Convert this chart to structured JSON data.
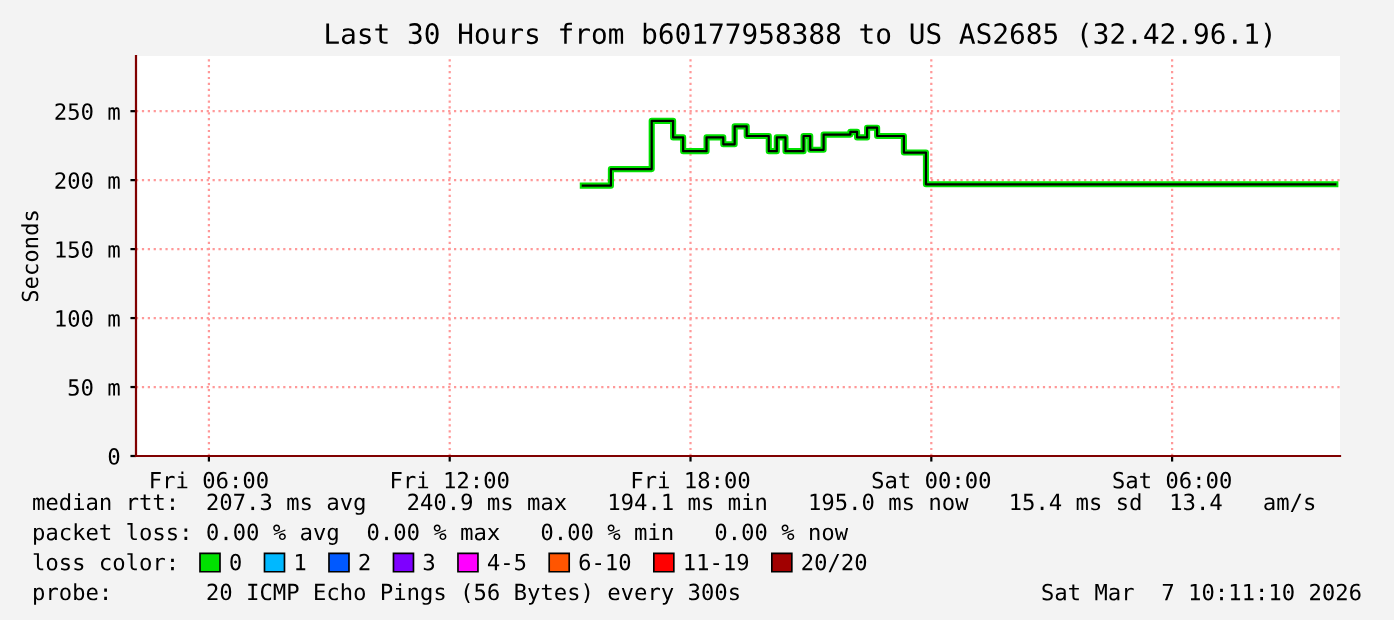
{
  "chart_data": {
    "type": "step",
    "title": "Last 30 Hours from b60177958388 to US AS2685 (32.42.96.1)",
    "ylabel": "Seconds",
    "series": [
      {
        "name": "0",
        "color": "#00e000",
        "x": [
          "2026-03-06T15:19",
          "2026-03-06T16:01",
          "2026-03-06T17:02",
          "2026-03-06T17:34",
          "2026-03-06T17:49",
          "2026-03-06T18:24",
          "2026-03-06T18:49",
          "2026-03-06T19:06",
          "2026-03-06T19:24",
          "2026-03-06T19:57",
          "2026-03-06T20:09",
          "2026-03-06T20:22",
          "2026-03-06T20:49",
          "2026-03-06T20:59",
          "2026-03-06T21:19",
          "2026-03-06T21:59",
          "2026-03-06T22:09",
          "2026-03-06T22:24",
          "2026-03-06T22:39",
          "2026-03-06T23:19",
          "2026-03-06T23:52",
          "2026-03-07T10:04"
        ],
        "values": [
          196,
          208,
          243,
          231,
          221,
          231,
          226,
          239,
          232,
          221,
          231,
          221,
          232,
          222,
          233,
          235,
          231,
          238,
          232,
          220,
          197,
          197
        ]
      },
      {
        "name": "1",
        "color": "#00b8ff"
      },
      {
        "name": "2",
        "color": "#0059ff"
      },
      {
        "name": "3",
        "color": "#7e00ff"
      },
      {
        "name": "4-5",
        "color": "#ff00ff"
      },
      {
        "name": "6-10",
        "color": "#ff5500"
      },
      {
        "name": "11-19",
        "color": "#ff0000"
      },
      {
        "name": "20/20",
        "color": "#a10000"
      }
    ],
    "xlim": [
      "2026-03-06T04:11",
      "2026-03-07T10:11"
    ],
    "xticks": [
      {
        "value": "2026-03-06T06:00",
        "label": "Fri 06:00"
      },
      {
        "value": "2026-03-06T12:00",
        "label": "Fri 12:00"
      },
      {
        "value": "2026-03-06T18:00",
        "label": "Fri 18:00"
      },
      {
        "value": "2026-03-07T00:00",
        "label": "Sat 00:00"
      },
      {
        "value": "2026-03-07T06:00",
        "label": "Sat 06:00"
      }
    ],
    "ylim": [
      0,
      290
    ],
    "yticks": [
      0,
      {
        "value": 50,
        "label": "50 m"
      },
      {
        "value": 100,
        "label": "100 m"
      },
      {
        "value": 150,
        "label": "150 m"
      },
      {
        "value": 200,
        "label": "200 m"
      },
      {
        "value": 250,
        "label": "250 m"
      }
    ],
    "grid": true,
    "legend": "bottom",
    "annotations": [
      "median rtt:  207.3 ms avg   240.9 ms max   194.1 ms min   195.0 ms now   15.4 ms sd  13.4   am/s",
      "packet loss: 0.00 % avg  0.00 % max   0.00 % min   0.00 % now",
      "loss color:",
      "probe:       20 ICMP Echo Pings (56 Bytes) every 300s",
      "Sat Mar  7 10:11:10 2026"
    ]
  }
}
